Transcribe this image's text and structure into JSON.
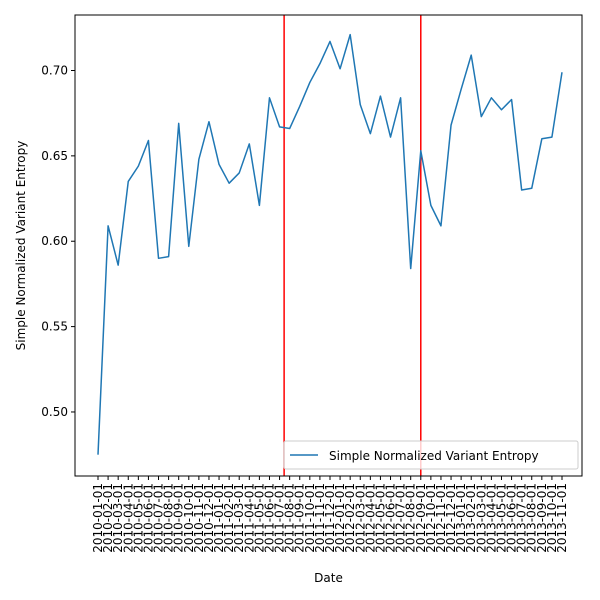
{
  "chart_data": {
    "type": "line",
    "title": "",
    "xlabel": "Date",
    "ylabel": "Simple Normalized Variant Entropy",
    "ylim": [
      0.4625,
      0.7325
    ],
    "y_ticks": [
      "0.50",
      "0.55",
      "0.60",
      "0.65",
      "0.70"
    ],
    "y_tick_values": [
      0.5,
      0.55,
      0.6,
      0.65,
      0.7
    ],
    "grid": false,
    "legend_position": "lower right",
    "categories": [
      "2010-01-01",
      "2010-02-01",
      "2010-03-01",
      "2010-04-01",
      "2010-05-01",
      "2010-06-01",
      "2010-07-01",
      "2010-08-01",
      "2010-09-01",
      "2010-10-01",
      "2010-11-01",
      "2010-12-01",
      "2011-01-01",
      "2011-02-01",
      "2011-03-01",
      "2011-04-01",
      "2011-05-01",
      "2011-06-01",
      "2011-07-01",
      "2011-08-01",
      "2011-09-01",
      "2011-10-01",
      "2011-11-01",
      "2011-12-01",
      "2012-01-01",
      "2012-02-01",
      "2012-03-01",
      "2012-04-01",
      "2012-05-01",
      "2012-06-01",
      "2012-07-01",
      "2012-08-01",
      "2012-09-01",
      "2012-10-01",
      "2012-11-01",
      "2012-12-01",
      "2013-01-01",
      "2013-02-01",
      "2013-03-01",
      "2013-04-01",
      "2013-05-01",
      "2013-06-01",
      "2013-07-01",
      "2013-08-01",
      "2013-09-01",
      "2013-10-01",
      "2013-11-01"
    ],
    "series": [
      {
        "name": "Simple Normalized Variant Entropy",
        "color": "#1f77b4",
        "values": [
          0.475,
          0.609,
          0.586,
          0.635,
          0.644,
          0.659,
          0.59,
          0.591,
          0.669,
          0.597,
          0.648,
          0.67,
          0.645,
          0.634,
          0.64,
          0.657,
          0.621,
          0.684,
          0.667,
          0.666,
          0.679,
          0.693,
          0.704,
          0.717,
          0.701,
          0.721,
          0.68,
          0.663,
          0.685,
          0.661,
          0.684,
          0.584,
          0.653,
          0.621,
          0.609,
          0.668,
          0.689,
          0.709,
          0.673,
          0.684,
          0.677,
          0.683,
          0.63,
          0.631,
          0.66,
          0.661,
          0.699
        ]
      }
    ],
    "vertical_lines": [
      {
        "x": "2011-07-15",
        "color": "#ff0000"
      },
      {
        "x": "2012-09-01",
        "color": "#ff0000"
      }
    ]
  }
}
